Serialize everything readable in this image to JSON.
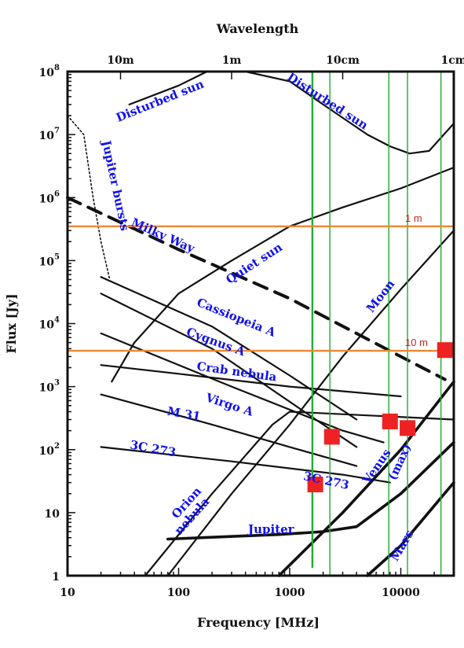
{
  "chart_data": {
    "type": "line",
    "title": "",
    "top_axis": {
      "label": "Wavelength",
      "ticks": [
        {
          "label": "10m",
          "freq_mhz": 30
        },
        {
          "label": "1m",
          "freq_mhz": 300
        },
        {
          "label": "10cm",
          "freq_mhz": 3000
        },
        {
          "label": "1cm",
          "freq_mhz": 30000
        }
      ]
    },
    "xlabel": "Frequency [MHz]",
    "ylabel": "Flux [Jy]",
    "x_scale": "log",
    "y_scale": "log",
    "xlim": [
      10,
      30000
    ],
    "ylim": [
      1,
      100000000
    ],
    "x_ticks": [
      {
        "label": "10",
        "value": 10
      },
      {
        "label": "100",
        "value": 100
      },
      {
        "label": "1000",
        "value": 1000
      },
      {
        "label": "10000",
        "value": 10000
      }
    ],
    "y_ticks": [
      {
        "label": "1",
        "value": 1,
        "sup": ""
      },
      {
        "label": "10",
        "value": 10,
        "sup": ""
      },
      {
        "label": "10",
        "value": 100,
        "sup": "2"
      },
      {
        "label": "10",
        "value": 1000,
        "sup": "3"
      },
      {
        "label": "10",
        "value": 10000,
        "sup": "4"
      },
      {
        "label": "10",
        "value": 100000,
        "sup": "5"
      },
      {
        "label": "10",
        "value": 1000000,
        "sup": "6"
      },
      {
        "label": "10",
        "value": 10000000,
        "sup": "7"
      },
      {
        "label": "10",
        "value": 100000000,
        "sup": "8"
      }
    ],
    "series": [
      {
        "name": "Disturbed sun",
        "style": "thin",
        "points": [
          [
            36,
            30000000
          ],
          [
            100,
            60000000
          ],
          [
            180,
            100000000
          ]
        ]
      },
      {
        "name": "Disturbed sun",
        "style": "thin",
        "points": [
          [
            400,
            100000000
          ],
          [
            1000,
            70000000
          ],
          [
            2000,
            30000000
          ],
          [
            5000,
            10000000
          ],
          [
            8000,
            6500000
          ],
          [
            12000,
            5000000
          ],
          [
            18000,
            5500000
          ],
          [
            30000,
            15000000
          ]
        ]
      },
      {
        "name": "Jupiter bursts",
        "style": "dotted",
        "points": [
          [
            10,
            20000000
          ],
          [
            14,
            10000000
          ],
          [
            17,
            1000000
          ],
          [
            20,
            200000
          ],
          [
            24,
            50000
          ]
        ]
      },
      {
        "name": "Milky Way",
        "style": "dashed",
        "points": [
          [
            10,
            1000000
          ],
          [
            100,
            150000
          ],
          [
            1000,
            25000
          ],
          [
            10000,
            3000
          ],
          [
            25000,
            1300
          ]
        ]
      },
      {
        "name": "Quiet sun",
        "style": "thin",
        "points": [
          [
            25,
            1200
          ],
          [
            40,
            5000
          ],
          [
            100,
            30000
          ],
          [
            300,
            100000
          ],
          [
            1000,
            350000
          ],
          [
            3000,
            700000
          ],
          [
            10000,
            1400000
          ],
          [
            30000,
            3000000
          ]
        ]
      },
      {
        "name": "Moon",
        "style": "thin",
        "points": [
          [
            80,
            1
          ],
          [
            300,
            20
          ],
          [
            1000,
            250
          ],
          [
            3000,
            3000
          ],
          [
            10000,
            35000
          ],
          [
            30000,
            300000
          ]
        ]
      },
      {
        "name": "Cassiopeia A",
        "style": "thin",
        "points": [
          [
            20,
            55000
          ],
          [
            200,
            9000
          ],
          [
            1000,
            1500
          ],
          [
            4000,
            300
          ]
        ]
      },
      {
        "name": "Cygnus A",
        "style": "thin",
        "points": [
          [
            20,
            30000
          ],
          [
            200,
            4000
          ],
          [
            2000,
            250
          ],
          [
            4000,
            110
          ]
        ]
      },
      {
        "name": "Crab nebula",
        "style": "thin",
        "points": [
          [
            20,
            2200
          ],
          [
            100,
            1600
          ],
          [
            1000,
            1000
          ],
          [
            10000,
            700
          ]
        ]
      },
      {
        "name": "Virgo A",
        "style": "thin",
        "points": [
          [
            20,
            750
          ],
          [
            200,
            250
          ],
          [
            1000,
            110
          ],
          [
            4000,
            55
          ]
        ]
      },
      {
        "name": "M 31",
        "style": "thin",
        "points": [
          [
            20,
            7000
          ],
          [
            300,
            1000
          ],
          [
            3000,
            200
          ],
          [
            7000,
            130
          ]
        ]
      },
      {
        "name": "3C 273",
        "style": "thin",
        "points": [
          [
            20,
            110
          ],
          [
            300,
            65
          ],
          [
            3000,
            40
          ],
          [
            8000,
            30
          ]
        ]
      },
      {
        "name": "Orion nebula",
        "style": "thin",
        "points": [
          [
            50,
            1
          ],
          [
            200,
            20
          ],
          [
            700,
            250
          ],
          [
            1000,
            400
          ],
          [
            30000,
            300
          ]
        ]
      },
      {
        "name": "Jupiter",
        "style": "thick",
        "points": [
          [
            80,
            3.8
          ],
          [
            800,
            4.5
          ],
          [
            2000,
            5
          ],
          [
            4000,
            6
          ],
          [
            10000,
            20
          ],
          [
            30000,
            130
          ]
        ]
      },
      {
        "name": "Venus (max)",
        "style": "thick",
        "points": [
          [
            800,
            1
          ],
          [
            3000,
            10
          ],
          [
            10000,
            100
          ],
          [
            30000,
            1200
          ]
        ]
      },
      {
        "name": "Mars",
        "style": "thick",
        "points": [
          [
            5000,
            1
          ],
          [
            10000,
            3
          ],
          [
            30000,
            30
          ]
        ]
      }
    ],
    "source_labels": [
      {
        "text": "Disturbed sun",
        "freq_mhz": 70,
        "flux_jy": 30000000,
        "angle": -22
      },
      {
        "text": "Disturbed sun",
        "freq_mhz": 2100,
        "flux_jy": 30000000,
        "angle": 33
      },
      {
        "text": "Jupiter bursts",
        "freq_mhz": 25,
        "flux_jy": 1500000,
        "angle": 78
      },
      {
        "text": "Milky Way",
        "freq_mhz": 70,
        "flux_jy": 220000,
        "angle": 24
      },
      {
        "text": "Quiet sun",
        "freq_mhz": 500,
        "flux_jy": 80000,
        "angle": -33
      },
      {
        "text": "Moon",
        "freq_mhz": 7000,
        "flux_jy": 25000,
        "angle": -52
      },
      {
        "text": "Cassiopeia A",
        "freq_mhz": 320,
        "flux_jy": 11000,
        "angle": 22
      },
      {
        "text": "Cygnus A",
        "freq_mhz": 210,
        "flux_jy": 4500,
        "angle": 20
      },
      {
        "text": "Crab nebula",
        "freq_mhz": 330,
        "flux_jy": 1500,
        "angle": 8
      },
      {
        "text": "Virgo A",
        "freq_mhz": 280,
        "flux_jy": 450,
        "angle": 18
      },
      {
        "text": "M 31",
        "freq_mhz": 110,
        "flux_jy": 320,
        "angle": 10
      },
      {
        "text": "3C 273",
        "freq_mhz": 58,
        "flux_jy": 90,
        "angle": 10
      },
      {
        "text": "3C 273",
        "freq_mhz": 2100,
        "flux_jy": 28,
        "angle": 12
      },
      {
        "text": "Orion",
        "freq_mhz": 125,
        "flux_jy": 13,
        "angle": -48
      },
      {
        "text": "nebula",
        "freq_mhz": 140,
        "flux_jy": 8,
        "angle": -48
      },
      {
        "text": "Jupiter",
        "freq_mhz": 680,
        "flux_jy": 4.7,
        "angle": 0
      },
      {
        "text": "Venus",
        "freq_mhz": 6500,
        "flux_jy": 50,
        "angle": -55
      },
      {
        "text": "(max)",
        "freq_mhz": 10500,
        "flux_jy": 60,
        "angle": -65
      },
      {
        "text": "Mars",
        "freq_mhz": 11000,
        "flux_jy": 2.8,
        "angle": -60
      }
    ],
    "overlay": {
      "vertical_lines_mhz": [
        1600,
        2300,
        7800,
        11500,
        23000
      ],
      "horizontal_lines": [
        {
          "label": "1 m",
          "flux_jy": 350000
        },
        {
          "label": "10 m",
          "flux_jy": 3700
        }
      ],
      "markers": [
        {
          "freq_mhz": 2400,
          "flux_jy": 160
        },
        {
          "freq_mhz": 1700,
          "flux_jy": 28
        },
        {
          "freq_mhz": 8000,
          "flux_jy": 280
        },
        {
          "freq_mhz": 11500,
          "flux_jy": 220
        },
        {
          "freq_mhz": 25000,
          "flux_jy": 3800
        }
      ]
    },
    "colors": {
      "curve": "#111111",
      "source_label": "#1010ee",
      "green_line": "#22aa33",
      "orange_line": "#ee8833",
      "marker": "#ee2222",
      "reference_label": "#cc2222"
    },
    "grid": false
  }
}
